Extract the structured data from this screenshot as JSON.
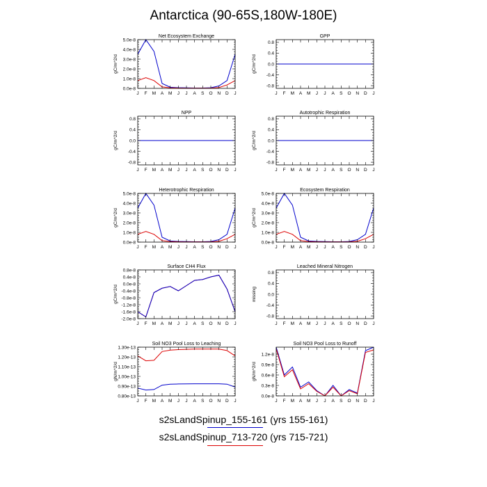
{
  "title": "Antarctica (90-65S,180W-180E)",
  "months": [
    "J",
    "F",
    "M",
    "A",
    "M",
    "J",
    "J",
    "A",
    "S",
    "O",
    "N",
    "D",
    "J"
  ],
  "legend": [
    {
      "label": "s2sLandSpinup_155-161 (yrs 155-161)",
      "color": "#0000cc"
    },
    {
      "label": "s2sLandSpinup_713-720 (yrs 715-721)",
      "color": "#dd0000"
    }
  ],
  "chart_data": [
    {
      "type": "line",
      "title": "Net Ecosystem Exchange",
      "ylabel": "gC/m^2/d",
      "ylim": [
        0,
        5e-08
      ],
      "yticks": [
        {
          "v": 0,
          "label": "0.0e-8"
        },
        {
          "v": 1e-08,
          "label": "1.0e-8"
        },
        {
          "v": 2e-08,
          "label": "2.0e-8"
        },
        {
          "v": 3e-08,
          "label": "3.0e-8"
        },
        {
          "v": 4e-08,
          "label": "4.0e-8"
        },
        {
          "v": 5e-08,
          "label": "5.0e-8"
        }
      ],
      "series": [
        {
          "color": "#0000cc",
          "values": [
            3.5e-08,
            5e-08,
            3.8e-08,
            5e-09,
            1.2e-09,
            7e-10,
            5e-10,
            4e-10,
            4e-10,
            6e-10,
            2.5e-09,
            8e-09,
            3.5e-08
          ]
        },
        {
          "color": "#dd0000",
          "values": [
            8e-09,
            1.1e-08,
            8e-09,
            1.5e-09,
            5e-10,
            3e-10,
            2e-10,
            2e-10,
            2e-10,
            3e-10,
            8e-10,
            3.5e-09,
            8e-09
          ]
        }
      ]
    },
    {
      "type": "line",
      "title": "GPP",
      "ylabel": "gC/m^2/d",
      "ylim": [
        -0.9,
        0.9
      ],
      "yticks": [
        {
          "v": 0.8,
          "label": "0.8"
        },
        {
          "v": 0.4,
          "label": "0.4"
        },
        {
          "v": 0,
          "label": "0.0"
        },
        {
          "v": -0.4,
          "label": "-0.4"
        },
        {
          "v": -0.8,
          "label": "-0.8"
        }
      ],
      "series": [
        {
          "color": "#dd0000",
          "values": [
            0,
            0,
            0,
            0,
            0,
            0,
            0,
            0,
            0,
            0,
            0,
            0,
            0
          ]
        },
        {
          "color": "#0000cc",
          "values": [
            0,
            0,
            0,
            0,
            0,
            0,
            0,
            0,
            0,
            0,
            0,
            0,
            0
          ]
        }
      ]
    },
    {
      "type": "line",
      "title": "NPP",
      "ylabel": "gC/m^2/d",
      "ylim": [
        -0.9,
        0.9
      ],
      "yticks": [
        {
          "v": 0.8,
          "label": "0.8"
        },
        {
          "v": 0.4,
          "label": "0.4"
        },
        {
          "v": 0,
          "label": "0.0"
        },
        {
          "v": -0.4,
          "label": "-0.4"
        },
        {
          "v": -0.8,
          "label": "-0.8"
        }
      ],
      "series": [
        {
          "color": "#dd0000",
          "values": [
            0,
            0,
            0,
            0,
            0,
            0,
            0,
            0,
            0,
            0,
            0,
            0,
            0
          ]
        },
        {
          "color": "#0000cc",
          "values": [
            0,
            0,
            0,
            0,
            0,
            0,
            0,
            0,
            0,
            0,
            0,
            0,
            0
          ]
        }
      ]
    },
    {
      "type": "line",
      "title": "Autotrophic Respiration",
      "ylabel": "gC/m^2/d",
      "ylim": [
        -0.9,
        0.9
      ],
      "yticks": [
        {
          "v": 0.8,
          "label": "0.8"
        },
        {
          "v": 0.4,
          "label": "0.4"
        },
        {
          "v": 0,
          "label": "0.0"
        },
        {
          "v": -0.4,
          "label": "-0.4"
        },
        {
          "v": -0.8,
          "label": "-0.8"
        }
      ],
      "series": [
        {
          "color": "#dd0000",
          "values": [
            0,
            0,
            0,
            0,
            0,
            0,
            0,
            0,
            0,
            0,
            0,
            0,
            0
          ]
        },
        {
          "color": "#0000cc",
          "values": [
            0,
            0,
            0,
            0,
            0,
            0,
            0,
            0,
            0,
            0,
            0,
            0,
            0
          ]
        }
      ]
    },
    {
      "type": "line",
      "title": "Heterotrophic Respiration",
      "ylabel": "gC/m^2/d",
      "ylim": [
        0,
        5e-08
      ],
      "yticks": [
        {
          "v": 0,
          "label": "0.0e-8"
        },
        {
          "v": 1e-08,
          "label": "1.0e-8"
        },
        {
          "v": 2e-08,
          "label": "2.0e-8"
        },
        {
          "v": 3e-08,
          "label": "3.0e-8"
        },
        {
          "v": 4e-08,
          "label": "4.0e-8"
        },
        {
          "v": 5e-08,
          "label": "5.0e-8"
        }
      ],
      "series": [
        {
          "color": "#0000cc",
          "values": [
            3.5e-08,
            5e-08,
            3.8e-08,
            5e-09,
            1.2e-09,
            7e-10,
            5e-10,
            4e-10,
            4e-10,
            6e-10,
            2.5e-09,
            8e-09,
            3.5e-08
          ]
        },
        {
          "color": "#dd0000",
          "values": [
            8e-09,
            1.1e-08,
            8e-09,
            1.5e-09,
            5e-10,
            3e-10,
            2e-10,
            2e-10,
            2e-10,
            3e-10,
            8e-10,
            3.5e-09,
            8e-09
          ]
        }
      ]
    },
    {
      "type": "line",
      "title": "Ecosystem Respiration",
      "ylabel": "gC/m^2/d",
      "ylim": [
        0,
        5e-08
      ],
      "yticks": [
        {
          "v": 0,
          "label": "0.0e-8"
        },
        {
          "v": 1e-08,
          "label": "1.0e-8"
        },
        {
          "v": 2e-08,
          "label": "2.0e-8"
        },
        {
          "v": 3e-08,
          "label": "3.0e-8"
        },
        {
          "v": 4e-08,
          "label": "4.0e-8"
        },
        {
          "v": 5e-08,
          "label": "5.0e-8"
        }
      ],
      "series": [
        {
          "color": "#0000cc",
          "values": [
            3.5e-08,
            5e-08,
            3.8e-08,
            5e-09,
            1.2e-09,
            7e-10,
            5e-10,
            4e-10,
            4e-10,
            6e-10,
            2.5e-09,
            8e-09,
            3.5e-08
          ]
        },
        {
          "color": "#dd0000",
          "values": [
            8e-09,
            1.1e-08,
            8e-09,
            1.5e-09,
            5e-10,
            3e-10,
            2e-10,
            2e-10,
            2e-10,
            3e-10,
            8e-10,
            3.5e-09,
            8e-09
          ]
        }
      ]
    },
    {
      "type": "line",
      "title": "Surface CH4 Flux",
      "ylabel": "gC/m^2/d",
      "ylim": [
        -2e-08,
        8e-09
      ],
      "yticks": [
        {
          "v": 8e-09,
          "label": "0.8e-8"
        },
        {
          "v": 4e-09,
          "label": "0.4e-8"
        },
        {
          "v": 0,
          "label": "0.0e-8"
        },
        {
          "v": -4e-09,
          "label": "-0.4e-8"
        },
        {
          "v": -8e-09,
          "label": "-0.8e-8"
        },
        {
          "v": -1.2e-08,
          "label": "-1.2e-8"
        },
        {
          "v": -1.6e-08,
          "label": "-1.6e-8"
        },
        {
          "v": -2e-08,
          "label": "-2.0e-8"
        }
      ],
      "series": [
        {
          "color": "#dd0000",
          "values": [
            -1.6e-08,
            -1.9e-08,
            -5e-09,
            -2.5e-09,
            -1.5e-09,
            -4e-09,
            -1e-09,
            2e-09,
            2.5e-09,
            4e-09,
            5e-09,
            -3e-09,
            -1.6e-08
          ]
        },
        {
          "color": "#0000cc",
          "values": [
            -1.6e-08,
            -1.9e-08,
            -5e-09,
            -2.5e-09,
            -1.5e-09,
            -4e-09,
            -1e-09,
            2e-09,
            2.5e-09,
            4e-09,
            5e-09,
            -3e-09,
            -1.6e-08
          ]
        }
      ]
    },
    {
      "type": "line",
      "title": "Leached Mineral Nitrogen",
      "ylabel": "missing",
      "ylim": [
        -0.9,
        0.9
      ],
      "yticks": [
        {
          "v": 0.8,
          "label": "0.8"
        },
        {
          "v": 0.4,
          "label": "0.4"
        },
        {
          "v": 0,
          "label": "0.0"
        },
        {
          "v": -0.4,
          "label": "-0.4"
        },
        {
          "v": -0.8,
          "label": "-0.8"
        }
      ],
      "series": []
    },
    {
      "type": "line",
      "title": "Soil NO3 Pool Loss to Leaching",
      "ylabel": "gN/m^2/d",
      "ylim": [
        8e-14,
        1.3e-13
      ],
      "yticks": [
        {
          "v": 8e-14,
          "label": "0.80e-13"
        },
        {
          "v": 9e-14,
          "label": "0.90e-13"
        },
        {
          "v": 1e-13,
          "label": "1.00e-13"
        },
        {
          "v": 1.1e-13,
          "label": "1.10e-13"
        },
        {
          "v": 1.2e-13,
          "label": "1.20e-13"
        },
        {
          "v": 1.3e-13,
          "label": "1.30e-13"
        }
      ],
      "series": [
        {
          "color": "#dd0000",
          "values": [
            1.21e-13,
            1.16e-13,
            1.165e-13,
            1.255e-13,
            1.27e-13,
            1.275e-13,
            1.278e-13,
            1.28e-13,
            1.28e-13,
            1.28e-13,
            1.28e-13,
            1.265e-13,
            1.21e-13
          ]
        },
        {
          "color": "#0000cc",
          "values": [
            8.8e-14,
            8.6e-14,
            8.65e-14,
            9.1e-14,
            9.2e-14,
            9.22e-14,
            9.23e-14,
            9.24e-14,
            9.24e-14,
            9.24e-14,
            9.24e-14,
            9.2e-14,
            8.9e-14
          ]
        }
      ]
    },
    {
      "type": "line",
      "title": "Soil NO3 Pool Loss to Runoff",
      "ylabel": "gN/m^2/d",
      "ylim": [
        0,
        1.4e-08
      ],
      "yticks": [
        {
          "v": 0,
          "label": "0.0e-8"
        },
        {
          "v": 3e-09,
          "label": "0.3e-8"
        },
        {
          "v": 6e-09,
          "label": "0.6e-8"
        },
        {
          "v": 9e-09,
          "label": "0.9e-8"
        },
        {
          "v": 1.2e-08,
          "label": "1.2e-8"
        }
      ],
      "series": [
        {
          "color": "#0000cc",
          "values": [
            1.4e-08,
            6e-09,
            8.3e-09,
            2.5e-09,
            4e-09,
            1.5e-09,
            0.0,
            3e-09,
            0.0,
            1.8e-09,
            8e-10,
            1.3e-08,
            1.4e-08
          ]
        },
        {
          "color": "#dd0000",
          "values": [
            1.35e-08,
            5.5e-09,
            7.5e-09,
            2e-09,
            3.5e-09,
            1.3e-09,
            0.0,
            2.5e-09,
            0.0,
            1.5e-09,
            6e-10,
            1.25e-08,
            1.32e-08
          ]
        }
      ]
    }
  ]
}
